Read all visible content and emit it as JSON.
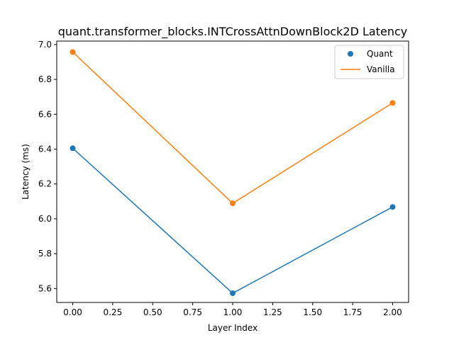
{
  "chart_data": {
    "type": "line",
    "title": "quant.transformer_blocks.INTCrossAttnDownBlock2D Latency",
    "xlabel": "Layer Index",
    "ylabel": "Latency (ms)",
    "xlim": [
      -0.1,
      2.1
    ],
    "ylim": [
      5.52,
      7.02
    ],
    "xticks": [
      "0.00",
      "0.25",
      "0.50",
      "0.75",
      "1.00",
      "1.25",
      "1.50",
      "1.75",
      "2.00"
    ],
    "yticks": [
      "5.6",
      "5.8",
      "6.0",
      "6.2",
      "6.4",
      "6.6",
      "6.8",
      "7.0"
    ],
    "grid": false,
    "legend_position": "top-right",
    "x": [
      0,
      1,
      2
    ],
    "series": [
      {
        "name": "Quant",
        "values": [
          6.405,
          5.573,
          6.068
        ],
        "color": "#1f77b4"
      },
      {
        "name": "Vanilla",
        "values": [
          6.957,
          6.089,
          6.665
        ],
        "color": "#ff7f0e"
      }
    ]
  }
}
